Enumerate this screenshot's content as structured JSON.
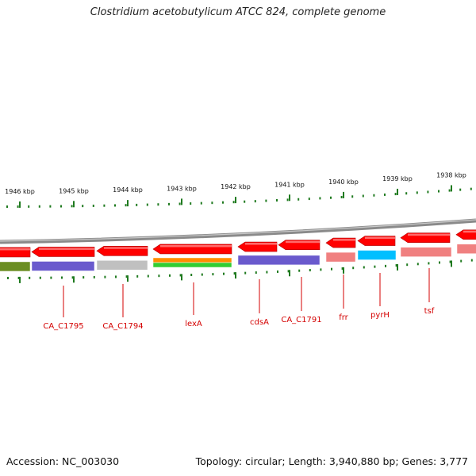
{
  "title": "Clostridium acetobutylicum ATCC 824, complete genome",
  "footer": {
    "accession_label": "Accession:",
    "accession": "NC_003030",
    "topology_text": "Topology: circular; Length: 3,940,880 bp; Genes: 3,777"
  },
  "colors": {
    "gene_arrow": "#ff0000",
    "gene_label": "#d40000",
    "backbone": "#8a8a8a",
    "tick": "#1f7a1f"
  },
  "ruler": [
    {
      "label": "1946 kbp"
    },
    {
      "label": "1945 kbp"
    },
    {
      "label": "1944 kbp"
    },
    {
      "label": "1943 kbp"
    },
    {
      "label": "1942 kbp"
    },
    {
      "label": "1941 kbp"
    },
    {
      "label": "1940 kbp"
    },
    {
      "label": "1939 kbp"
    },
    {
      "label": "1938 kbp"
    }
  ],
  "cog_colors": [
    "#6b8e23",
    "#6a5acd",
    "#c0c0c0",
    "#ff8c00",
    "#32cd32",
    "#6a5acd",
    "#f08080",
    "#00bfff",
    "#f08080",
    "#f08080"
  ],
  "genes": [
    {
      "label": "CA_C1795"
    },
    {
      "label": "CA_C1794"
    },
    {
      "label": "lexA"
    },
    {
      "label": "cdsA"
    },
    {
      "label": "CA_C1791"
    },
    {
      "label": "frr"
    },
    {
      "label": "pyrH"
    },
    {
      "label": "tsf"
    }
  ]
}
